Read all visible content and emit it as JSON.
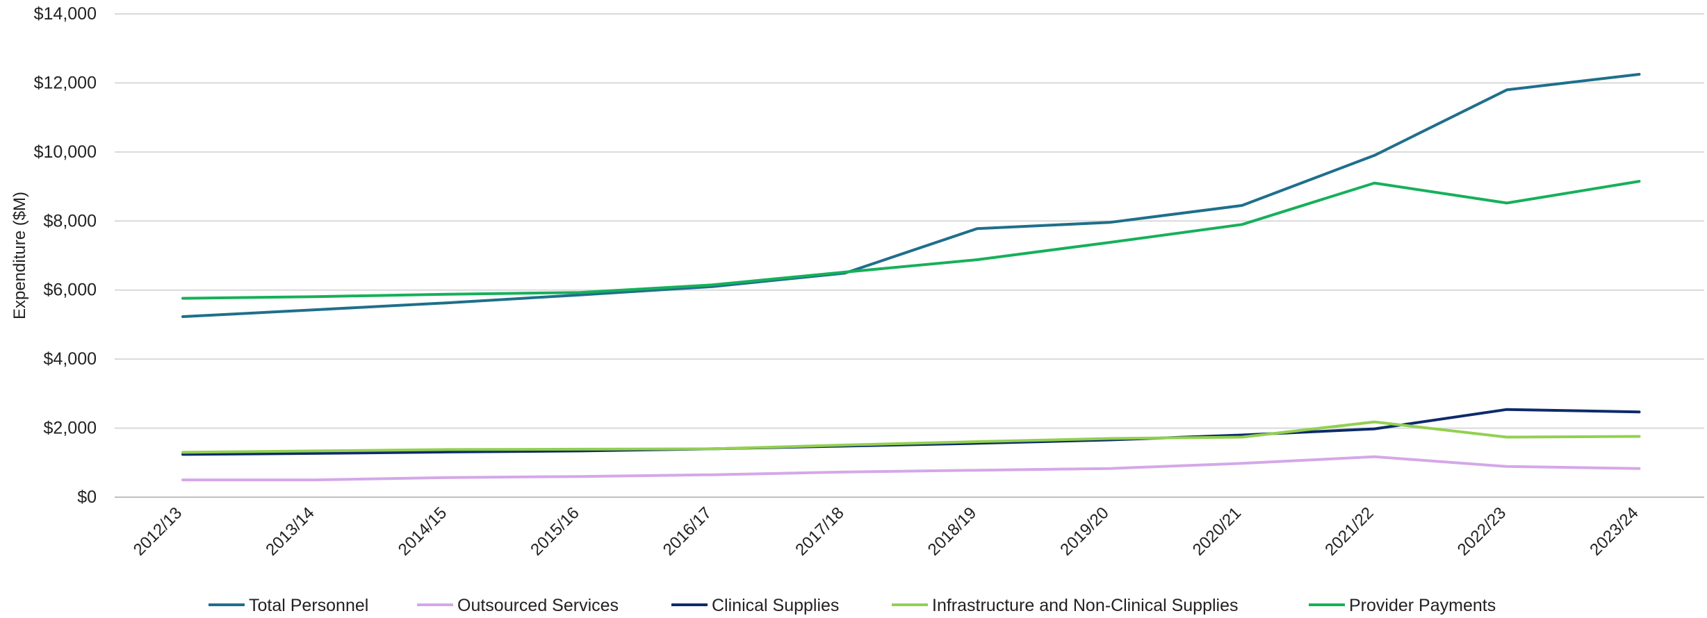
{
  "chart_data": {
    "type": "line",
    "title": "",
    "xlabel": "",
    "ylabel": "Expenditure ($M)",
    "ylim": [
      0,
      14000
    ],
    "y_ticks": [
      0,
      2000,
      4000,
      6000,
      8000,
      10000,
      12000,
      14000
    ],
    "y_tick_labels": [
      "$0",
      "$2,000",
      "$4,000",
      "$6,000",
      "$8,000",
      "$10,000",
      "$12,000",
      "$14,000"
    ],
    "grid": true,
    "legend_position": "bottom",
    "categories": [
      "2012/13",
      "2013/14",
      "2014/15",
      "2015/16",
      "2016/17",
      "2017/18",
      "2018/19",
      "2019/20",
      "2020/21",
      "2021/22",
      "2022/23",
      "2023/24"
    ],
    "series": [
      {
        "name": "Total Personnel",
        "color": "#1f6f8b",
        "values": [
          5230,
          5430,
          5630,
          5860,
          6100,
          6490,
          7780,
          7960,
          8450,
          9900,
          11800,
          12250
        ]
      },
      {
        "name": "Outsourced Services",
        "color": "#d4a8e8",
        "values": [
          500,
          500,
          570,
          600,
          650,
          730,
          780,
          830,
          980,
          1170,
          890,
          830
        ]
      },
      {
        "name": "Clinical Supplies",
        "color": "#0d2b6b",
        "values": [
          1240,
          1270,
          1310,
          1340,
          1400,
          1480,
          1560,
          1660,
          1800,
          1980,
          2540,
          2470
        ]
      },
      {
        "name": "Infrastructure and Non-Clinical Supplies",
        "color": "#92d050",
        "values": [
          1300,
          1340,
          1380,
          1390,
          1400,
          1510,
          1610,
          1700,
          1740,
          2180,
          1740,
          1760
        ]
      },
      {
        "name": "Provider Payments",
        "color": "#16b05a",
        "values": [
          5760,
          5810,
          5880,
          5930,
          6150,
          6520,
          6880,
          7380,
          7900,
          9100,
          8520,
          9150
        ]
      }
    ]
  }
}
